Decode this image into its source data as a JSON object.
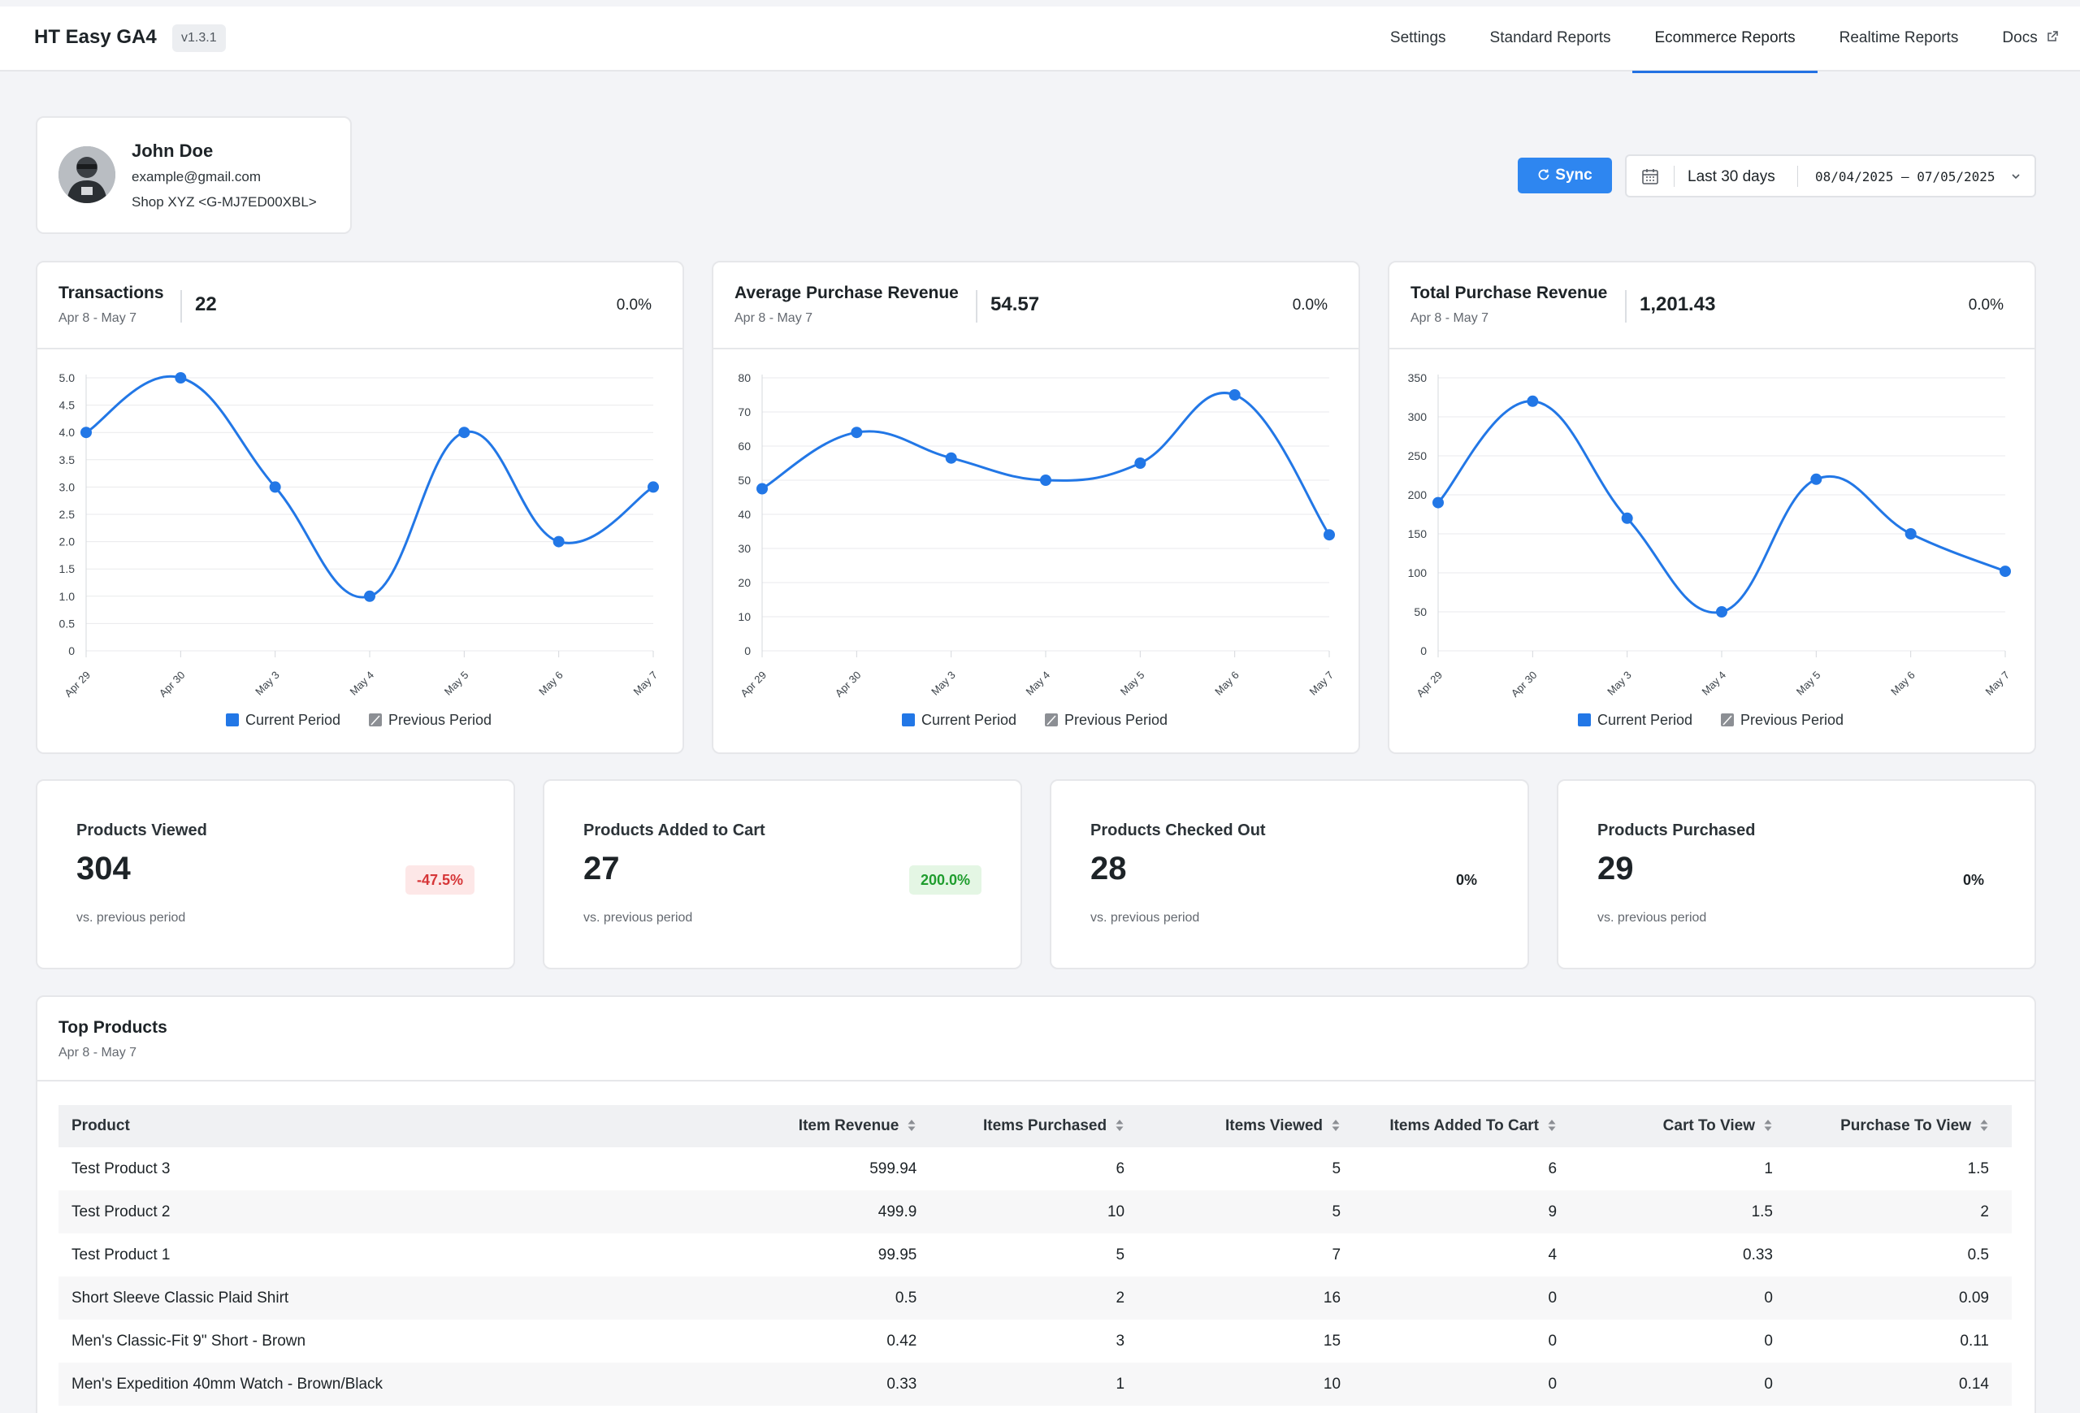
{
  "app": {
    "title": "HT Easy GA4",
    "version": "v1.3.1"
  },
  "nav": {
    "items": [
      {
        "label": "Settings",
        "active": false
      },
      {
        "label": "Standard Reports",
        "active": false
      },
      {
        "label": "Ecommerce Reports",
        "active": true
      },
      {
        "label": "Realtime Reports",
        "active": false
      },
      {
        "label": "Docs",
        "active": false,
        "icon": "external-link-icon"
      }
    ]
  },
  "user": {
    "name": "John Doe",
    "email": "example@gmail.com",
    "shop": "Shop XYZ <G-MJ7ED00XBL>"
  },
  "toolbar": {
    "sync_label": "Sync",
    "date_preset": "Last 30 days",
    "date_range": "08/04/2025 – 07/05/2025"
  },
  "colors": {
    "accent": "#2e86f0",
    "line": "#2277e6",
    "negative": "#d63638",
    "positive": "#1f9d2e"
  },
  "cards": [
    {
      "title": "Transactions",
      "period": "Apr 8 - May 7",
      "value": "22",
      "change": "0.0%"
    },
    {
      "title": "Average Purchase Revenue",
      "period": "Apr 8 - May 7",
      "value": "54.57",
      "change": "0.0%"
    },
    {
      "title": "Total Purchase Revenue",
      "period": "Apr 8 - May 7",
      "value": "1,201.43",
      "change": "0.0%"
    }
  ],
  "chart_data": [
    {
      "type": "line",
      "categories": [
        "Apr 29",
        "Apr 30",
        "May 3",
        "May 4",
        "May 5",
        "May 6",
        "May 7"
      ],
      "series": [
        {
          "name": "Current Period",
          "values": [
            4,
            5,
            3,
            1,
            4,
            2,
            3
          ]
        }
      ],
      "legend": [
        "Current Period",
        "Previous Period"
      ],
      "ylim": [
        0,
        5
      ],
      "yticks": [
        "0",
        "0.5",
        "1.0",
        "1.5",
        "2.0",
        "2.5",
        "3.0",
        "3.5",
        "4.0",
        "4.5",
        "5.0"
      ],
      "grid": true,
      "legend_position": "bottom"
    },
    {
      "type": "line",
      "categories": [
        "Apr 29",
        "Apr 30",
        "May 3",
        "May 4",
        "May 5",
        "May 6",
        "May 7"
      ],
      "series": [
        {
          "name": "Current Period",
          "values": [
            47.5,
            64,
            56.5,
            50,
            55,
            75,
            34
          ]
        }
      ],
      "legend": [
        "Current Period",
        "Previous Period"
      ],
      "ylim": [
        0,
        80
      ],
      "yticks": [
        "0",
        "10",
        "20",
        "30",
        "40",
        "50",
        "60",
        "70",
        "80"
      ],
      "grid": true,
      "legend_position": "bottom"
    },
    {
      "type": "line",
      "categories": [
        "Apr 29",
        "Apr 30",
        "May 3",
        "May 4",
        "May 5",
        "May 6",
        "May 7"
      ],
      "series": [
        {
          "name": "Current Period",
          "values": [
            190,
            320,
            170,
            50,
            220,
            150,
            102
          ]
        }
      ],
      "legend": [
        "Current Period",
        "Previous Period"
      ],
      "ylim": [
        0,
        350
      ],
      "yticks": [
        "0",
        "50",
        "100",
        "150",
        "200",
        "250",
        "300",
        "350"
      ],
      "grid": true,
      "legend_position": "bottom"
    }
  ],
  "stats": [
    {
      "title": "Products Viewed",
      "value": "304",
      "change": "-47.5%",
      "trend": "down",
      "foot": "vs. previous period"
    },
    {
      "title": "Products Added to Cart",
      "value": "27",
      "change": "200.0%",
      "trend": "up",
      "foot": "vs. previous period"
    },
    {
      "title": "Products Checked Out",
      "value": "28",
      "change": "0%",
      "trend": "flat",
      "foot": "vs. previous period"
    },
    {
      "title": "Products Purchased",
      "value": "29",
      "change": "0%",
      "trend": "flat",
      "foot": "vs. previous period"
    }
  ],
  "products": {
    "title": "Top Products",
    "period": "Apr 8 - May 7",
    "columns": [
      "Product",
      "Item Revenue",
      "Items Purchased",
      "Items Viewed",
      "Items Added To Cart",
      "Cart To View",
      "Purchase To View"
    ],
    "rows": [
      [
        "Test Product 3",
        "599.94",
        "6",
        "5",
        "6",
        "1",
        "1.5"
      ],
      [
        "Test Product 2",
        "499.9",
        "10",
        "5",
        "9",
        "1.5",
        "2"
      ],
      [
        "Test Product 1",
        "99.95",
        "5",
        "7",
        "4",
        "0.33",
        "0.5"
      ],
      [
        "Short Sleeve Classic Plaid Shirt",
        "0.5",
        "2",
        "16",
        "0",
        "0",
        "0.09"
      ],
      [
        "Men's Classic-Fit 9\" Short - Brown",
        "0.42",
        "3",
        "15",
        "0",
        "0",
        "0.11"
      ],
      [
        "Men's Expedition 40mm Watch - Brown/Black",
        "0.33",
        "1",
        "10",
        "0",
        "0",
        "0.14"
      ]
    ]
  }
}
